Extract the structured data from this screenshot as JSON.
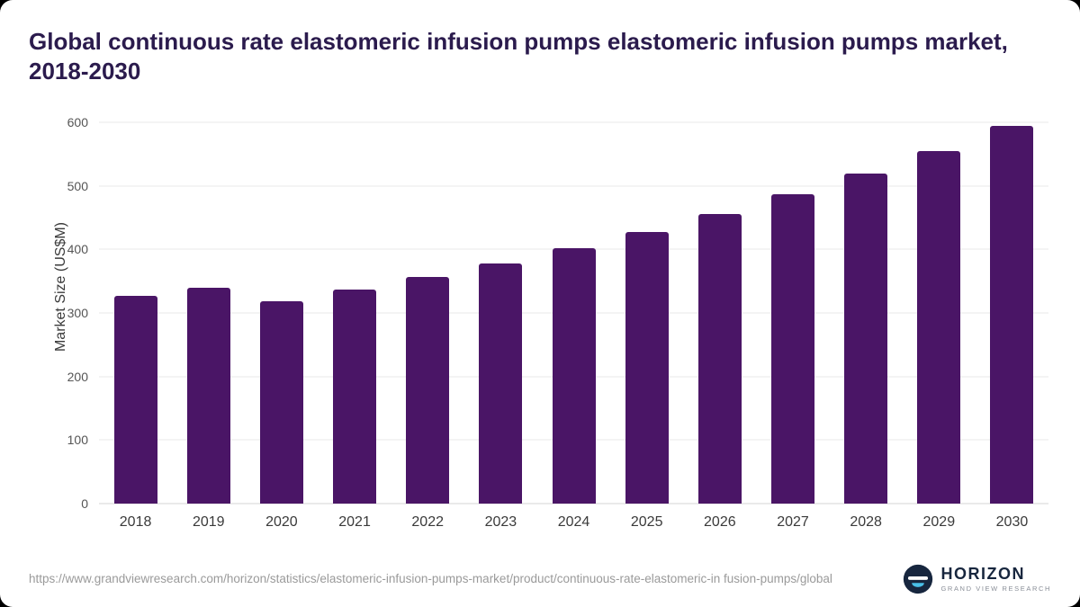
{
  "title": "Global continuous rate elastomeric infusion pumps elastomeric infusion pumps market, 2018-2030",
  "chart_data": {
    "type": "bar",
    "categories": [
      "2018",
      "2019",
      "2020",
      "2021",
      "2022",
      "2023",
      "2024",
      "2025",
      "2026",
      "2027",
      "2028",
      "2029",
      "2030"
    ],
    "values": [
      327,
      340,
      319,
      337,
      357,
      378,
      402,
      428,
      455,
      487,
      519,
      555,
      595
    ],
    "title": "Global continuous rate elastomeric infusion pumps elastomeric infusion pumps market, 2018-2030",
    "xlabel": "",
    "ylabel": "Market Size (US$M)",
    "ylim": [
      0,
      600
    ],
    "yticks": [
      0,
      100,
      200,
      300,
      400,
      500,
      600
    ],
    "bar_color": "#4a1566",
    "grid": "horizontal",
    "legend": "none"
  },
  "footer": {
    "source_url": "https://www.grandviewresearch.com/horizon/statistics/elastomeric-infusion-pumps-market/product/continuous-rate-elastomeric-in fusion-pumps/global",
    "logo": {
      "name": "HORIZON",
      "subtitle": "GRAND VIEW RESEARCH",
      "icon": "horizon-eye-icon",
      "navy": "#17263e",
      "teal": "#49c0e8"
    }
  }
}
